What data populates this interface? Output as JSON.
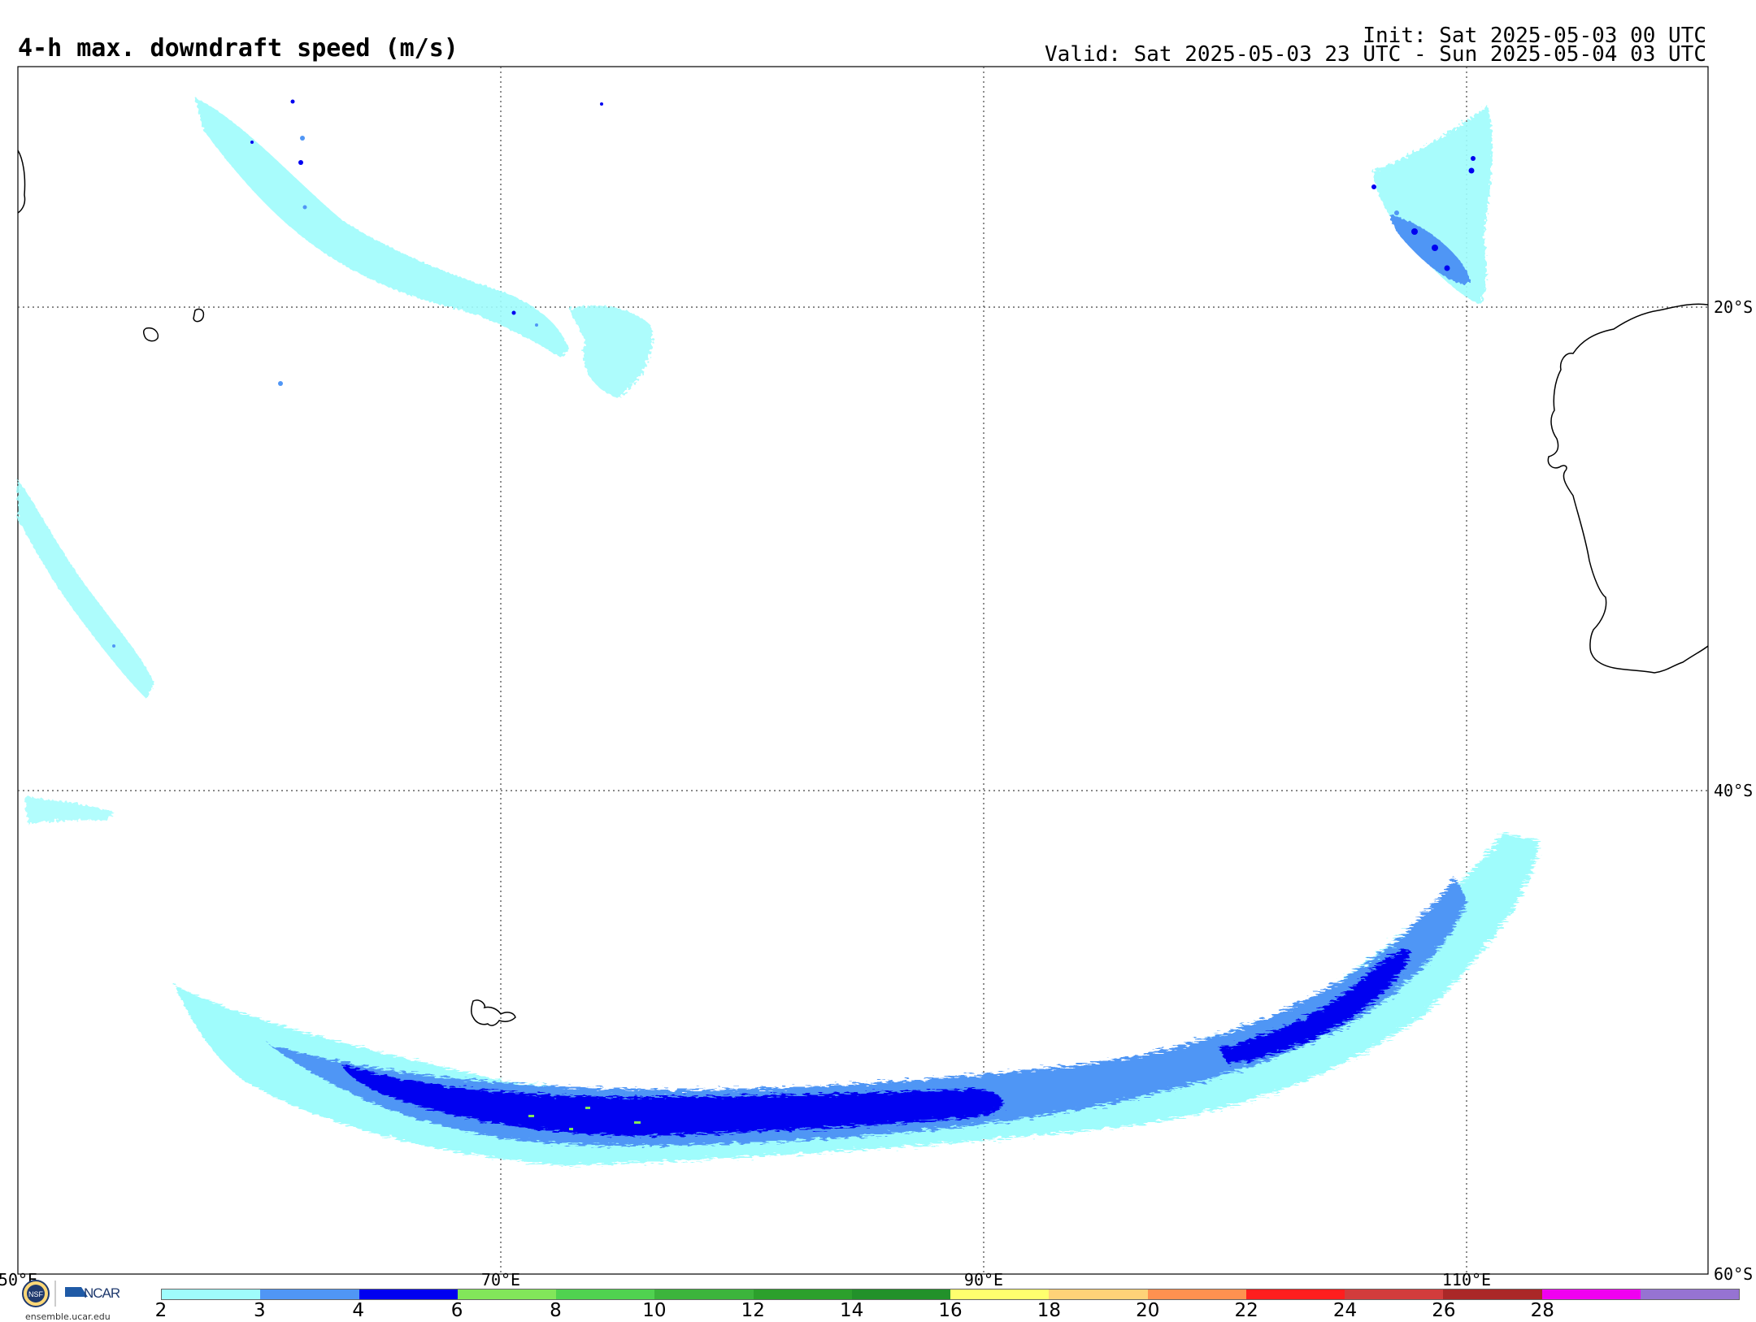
{
  "header": {
    "title": "4-h max. downdraft speed (m/s)",
    "init": "Init: Sat 2025-05-03 00 UTC",
    "valid": "Valid: Sat 2025-05-03 23 UTC - Sun 2025-05-04 03 UTC"
  },
  "map": {
    "longitude_labels": [
      "50°E",
      "70°E",
      "90°E",
      "110°E"
    ],
    "latitude_labels": [
      "20°S",
      "40°S",
      "60°S"
    ]
  },
  "colorbar": {
    "levels": [
      "2",
      "3",
      "4",
      "6",
      "8",
      "10",
      "12",
      "14",
      "16",
      "18",
      "20",
      "22",
      "24",
      "26",
      "28"
    ],
    "colors": [
      "#9ffcfc",
      "#5096f5",
      "#0000f0",
      "#82e65a",
      "#50d250",
      "#3cb43c",
      "#2ca02c",
      "#22912a",
      "#ffff6e",
      "#ffd278",
      "#ff9150",
      "#ff1e1e",
      "#d23c3c",
      "#aa2828",
      "#f000f0",
      "#9673d2"
    ]
  },
  "logos": {
    "ncar_text": "NCAR",
    "url": "ensemble.ucar.edu",
    "nsf_text": "NSF"
  },
  "icons": {
    "nsf": "nsf-logo-icon",
    "ncar": "ncar-logo-icon"
  }
}
